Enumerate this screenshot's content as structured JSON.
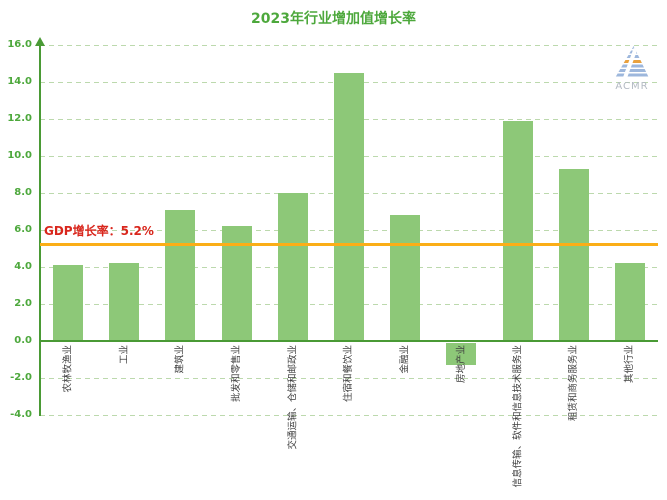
{
  "title": "2023年行业增加值增长率",
  "watermark": {
    "text": "ACMR"
  },
  "gdp_line": {
    "label": "GDP增长率：5.2%",
    "value": 5.2,
    "line_color": "#FBAE17",
    "label_color": "#D9261C"
  },
  "colors": {
    "title_text": "#4DA83C",
    "axis": "#4A9A35",
    "tick_text": "#4DA83C",
    "gridline": "#BCD9AD",
    "bar": "#8DC878",
    "category_text": "#404040",
    "watermark_text": "#B3BAC3",
    "logo_blue": "#9DB7DC",
    "logo_orange": "#E9A13D"
  },
  "chart_data": {
    "type": "bar",
    "title": "2023年行业增加值增长率",
    "categories": [
      "农林牧渔业",
      "工业",
      "建筑业",
      "批发和零售业",
      "交通运输、仓储和邮政业",
      "住宿和餐饮业",
      "金融业",
      "房地产业",
      "信息传输、软件和信息技术服务业",
      "租赁和商务服务业",
      "其他行业"
    ],
    "values": [
      4.1,
      4.2,
      7.1,
      6.2,
      8.0,
      14.5,
      6.8,
      -1.3,
      11.9,
      9.3,
      4.2
    ],
    "unit": "%",
    "xlabel": "",
    "ylabel": "",
    "ylim": [
      -4.0,
      16.0
    ],
    "ytick_labels": [
      "16.0",
      "14.0",
      "12.0",
      "10.0",
      "8.0",
      "6.0",
      "4.0",
      "2.0",
      "0.0",
      "-2.0",
      "-4.0"
    ],
    "grid": "horizontal-dashed",
    "legend": "none",
    "reference_line": {
      "label": "GDP增长率：5.2%",
      "value": 5.2
    }
  }
}
